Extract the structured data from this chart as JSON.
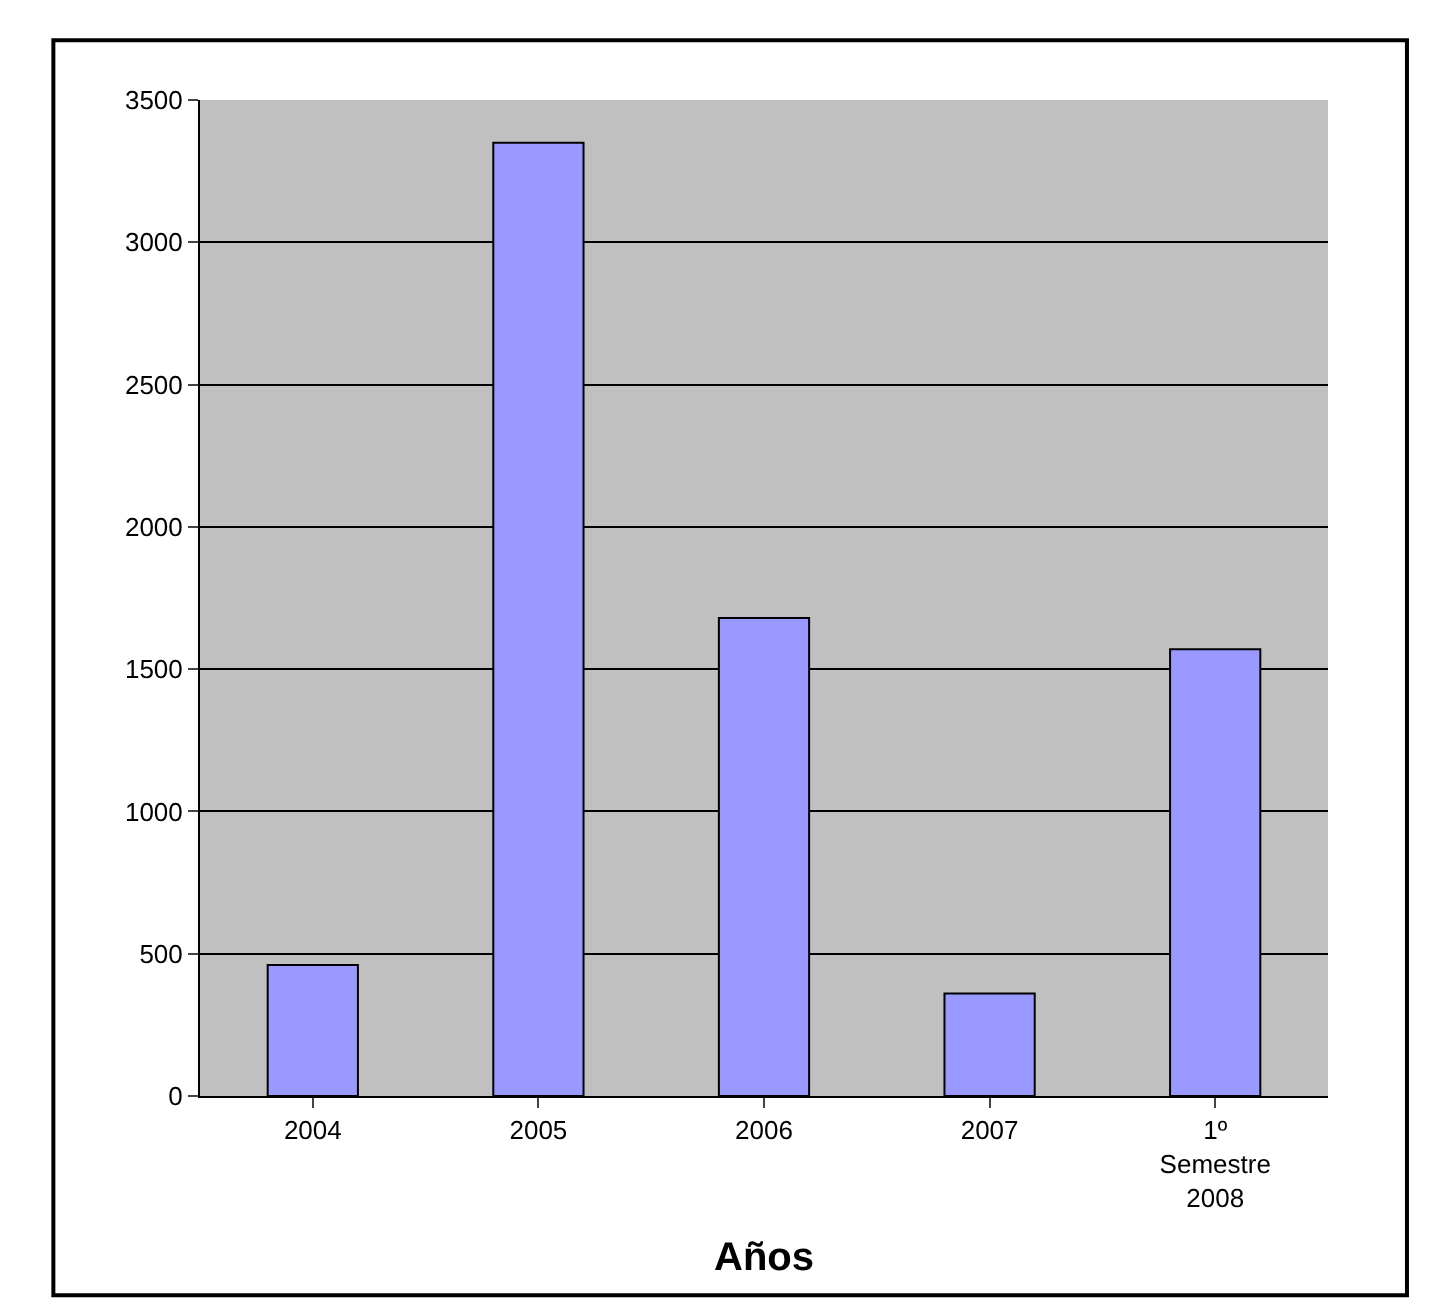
{
  "chart_data": {
    "type": "bar",
    "xlabel": "Años",
    "categories": [
      "2004",
      "2005",
      "2006",
      "2007",
      "1º\nSemestre\n2008"
    ],
    "values": [
      460,
      3350,
      1680,
      360,
      1570
    ],
    "color": "#9999ff",
    "ylim": [
      0,
      3500
    ],
    "yticks": [
      0,
      500,
      1000,
      1500,
      2000,
      2500,
      3000,
      3500
    ],
    "grid": "y"
  }
}
